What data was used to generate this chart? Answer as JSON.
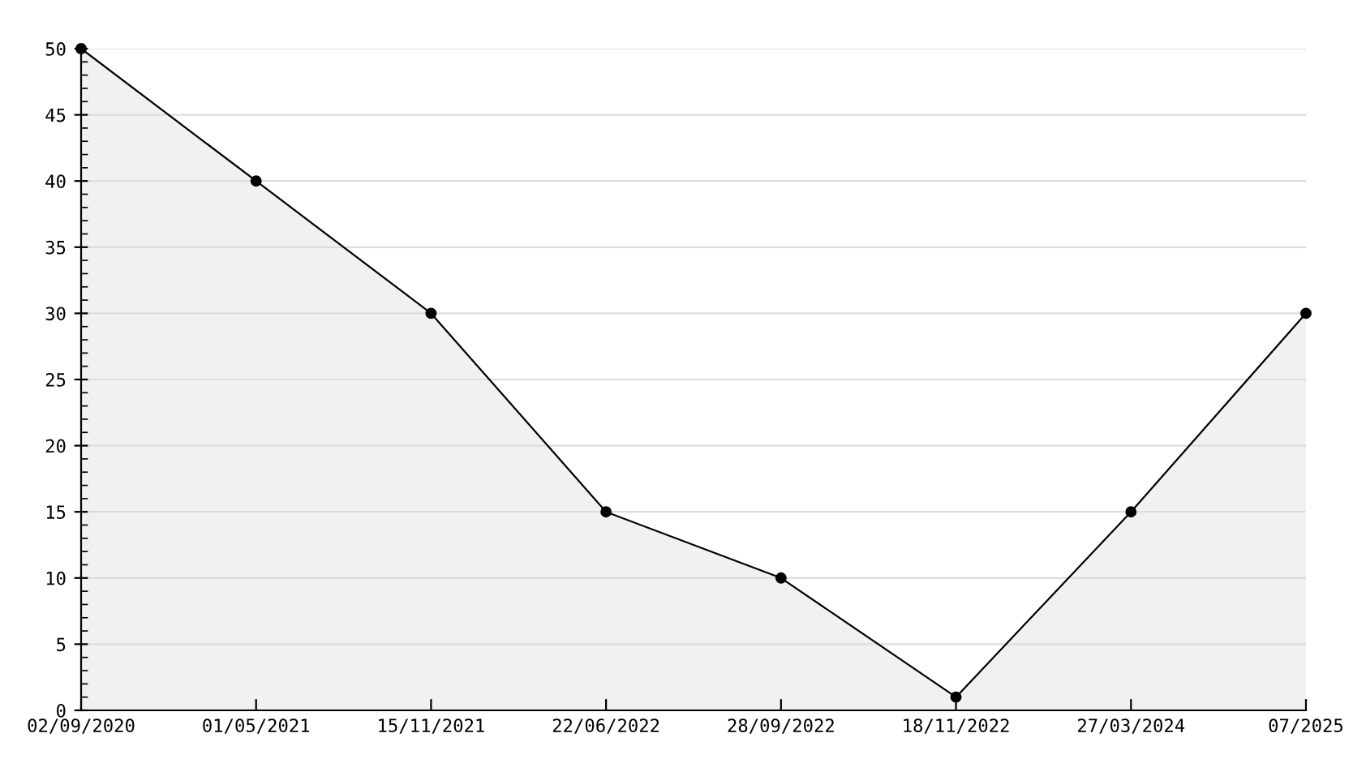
{
  "chart_data": {
    "type": "area",
    "categories": [
      "02/09/2020",
      "01/05/2021",
      "15/11/2021",
      "22/06/2022",
      "28/09/2022",
      "18/11/2022",
      "27/03/2024",
      "07/2025"
    ],
    "series": [
      {
        "color": "#000000",
        "values": [
          50,
          40,
          30,
          15,
          10,
          1,
          15,
          30
        ]
      }
    ],
    "ylim": [
      0,
      50
    ],
    "yticks": [
      0,
      5,
      10,
      15,
      20,
      25,
      30,
      35,
      40,
      45,
      50
    ],
    "grid": "y",
    "marker": "circle",
    "line_style": "solid"
  }
}
